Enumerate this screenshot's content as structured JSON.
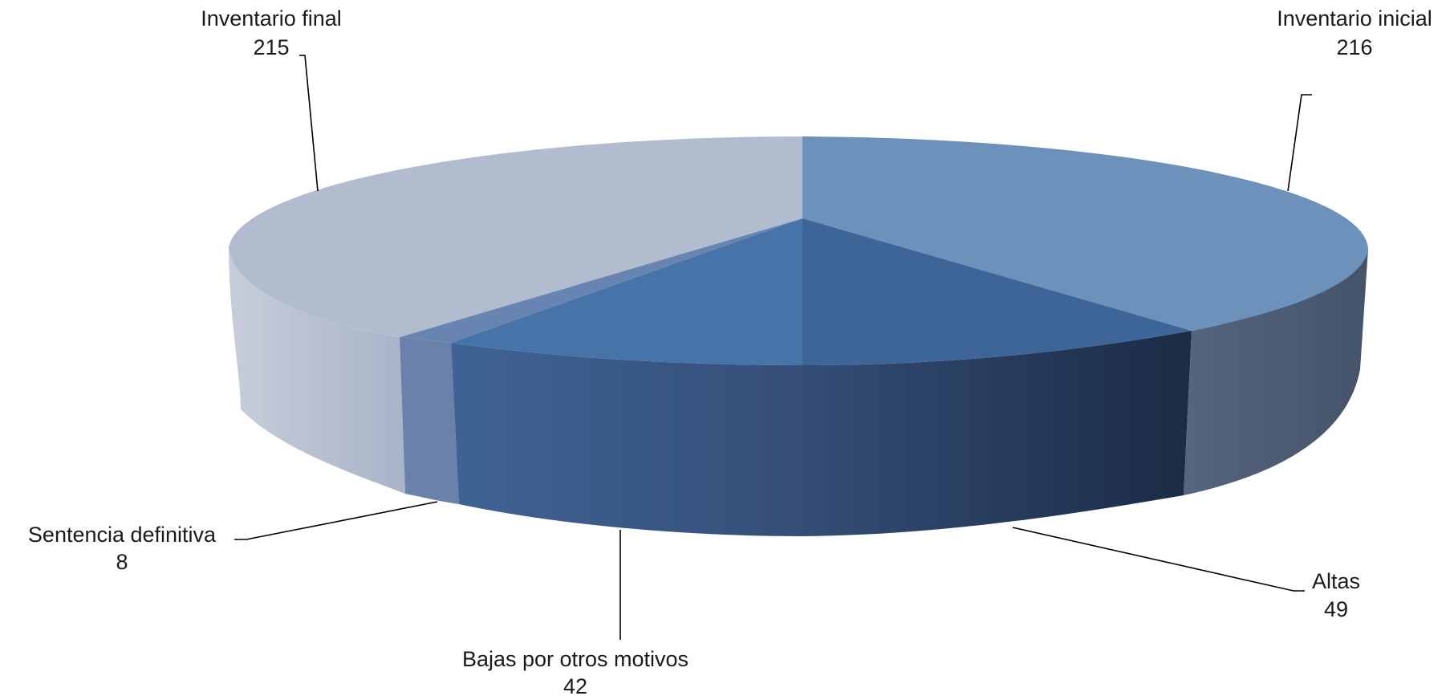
{
  "chart_data": {
    "type": "pie",
    "style": "3d",
    "title": "",
    "slices": [
      {
        "label": "Inventario inicial",
        "value": 216,
        "color": "#6C91BB"
      },
      {
        "label": "Altas",
        "value": 49,
        "color": "#3D6597"
      },
      {
        "label": "Bajas por otros motivos",
        "value": 42,
        "color": "#4673A8"
      },
      {
        "label": "Sentencia definitiva",
        "value": 8,
        "color": "#6785B0"
      },
      {
        "label": "Inventario final",
        "value": 215,
        "color": "#B2BCCF"
      }
    ]
  }
}
